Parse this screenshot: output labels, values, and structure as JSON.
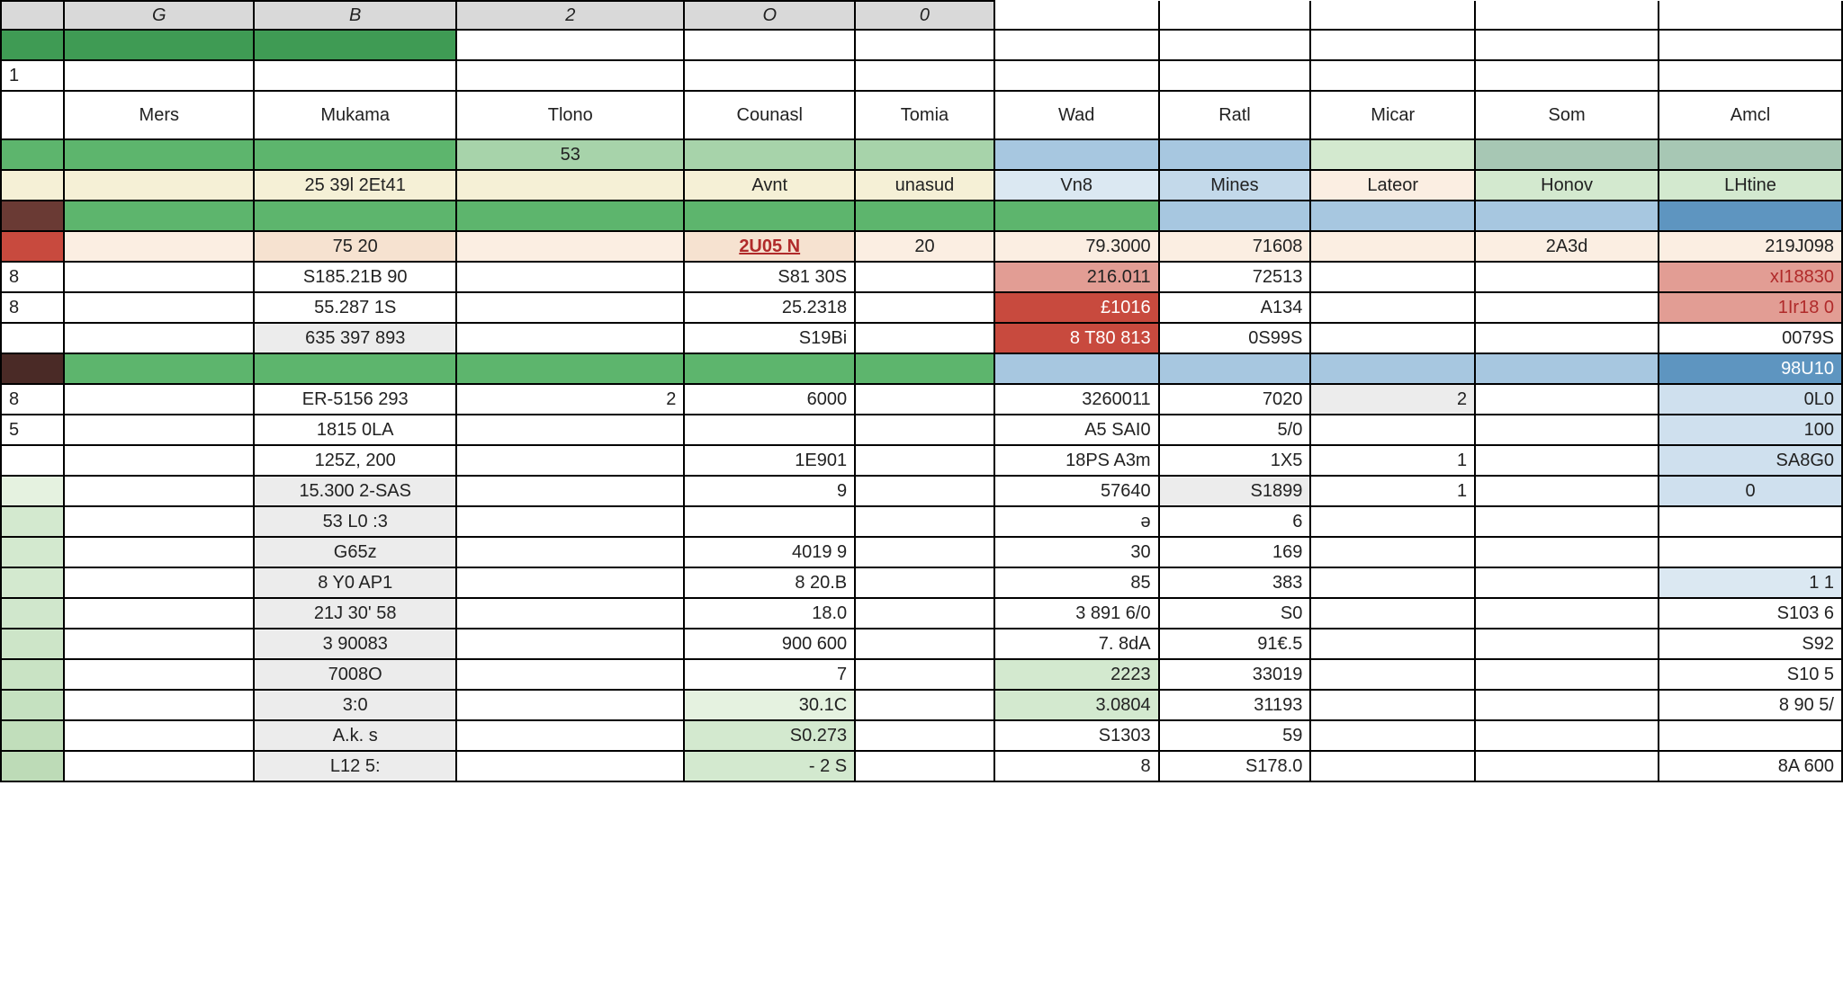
{
  "colors": {
    "headerGray": "#d6d6d6",
    "greenDark": "#3f9b54",
    "greenMid": "#5db56d",
    "greenSoft": "#a7d3aa",
    "greenPale": "#d3e9cf",
    "greenPalest": "#e5f2e0",
    "blueMid": "#a7c7e0",
    "blueSoft": "#c3d9ea",
    "bluePale": "#dbe8f2",
    "blueDark": "#5e95c0",
    "cream": "#f5f0d6",
    "creamSoft": "#f9f5e6",
    "peach": "#f6e2d0",
    "peachSoft": "#fbeee2",
    "red": "#c84a3e",
    "redSoft": "#e29d94",
    "redText": "#b02a2a",
    "brown": "#6a3a34",
    "brownDark": "#4a2a26",
    "grayCell": "#ececec",
    "bluePaleCell": "#cfe0ee"
  },
  "columnLetters": [
    "",
    "G",
    "B",
    "2",
    "O",
    "0",
    "",
    "",
    "",
    "",
    ""
  ],
  "headers": [
    "",
    "Mers",
    "Mukama",
    "Tlono",
    "Counasl",
    "Tomia",
    "Wad",
    "Ratl",
    "Micar",
    "Som",
    "Amcl"
  ],
  "row_sub1": [
    "",
    "",
    "",
    "53",
    "",
    "",
    "",
    "",
    "",
    "",
    ""
  ],
  "row_sub2": [
    "",
    "",
    "25 39l 2Et41",
    "",
    "Avnt",
    "unasud",
    "Vn8",
    "Mines",
    "Lateor",
    "Honov",
    "LHtine"
  ],
  "row_sub2_bg": [
    "#f5f0d6",
    "#f5f0d6",
    "#f5f0d6",
    "#f5f0d6",
    "#f5f0d6",
    "#f5f0d6",
    "#dbe8f2",
    "#c3d9ea",
    "#fbeee2",
    "#d3e9cf",
    "#d3e9cf"
  ],
  "row_red": {
    "c0_bg": "#c84a3e",
    "cells": [
      "",
      "",
      "75    20",
      "",
      "2U05 N",
      "20",
      "79.3000",
      "71608",
      "",
      "2A3d",
      "219J098"
    ],
    "bg": [
      "#c84a3e",
      "#fbeee2",
      "#f6e2d0",
      "#fbeee2",
      "#f6e2d0",
      "#fbeee2",
      "#fbeee2",
      "#fbeee2",
      "#fbeee2",
      "#fbeee2",
      "#fbeee2"
    ],
    "fg": [
      "",
      "",
      "",
      "",
      "#b02a2a",
      "",
      "",
      "",
      "",
      "",
      ""
    ]
  },
  "row_r1": [
    "8",
    "",
    "S185.21B   90",
    "",
    "S81 30S",
    "",
    "216.011",
    "72513",
    "",
    "",
    "xI18830"
  ],
  "row_r1_bg5": "#e29d94",
  "row_r1_bg10": "#e29d94",
  "row_r2": [
    "8",
    "",
    "55.287    1S",
    "",
    "25.2318",
    "",
    "£1016",
    "A134",
    "",
    "",
    "1Ir18 0"
  ],
  "row_r2_bg5": "#c84a3e",
  "row_r2_bg10": "#e29d94",
  "row_totals": [
    "",
    "",
    "635  397 893",
    "",
    "S19Bi",
    "",
    "8 T80 813",
    "0S99S",
    "",
    "",
    "0079S"
  ],
  "row_totals_bg5": "#c84a3e",
  "row_block2": {
    "r1": [
      "8",
      "",
      "ER-5156    293",
      "2",
      "6000",
      "",
      "3260011",
      "7020",
      "2",
      "",
      "0L0"
    ],
    "r2": [
      "5",
      "",
      "1815    0LA",
      "",
      "",
      "",
      "A5 SAI0",
      "5/0",
      "",
      "",
      "100"
    ],
    "r3": [
      "",
      "",
      "125Z,    200",
      "",
      "1E901",
      "",
      "18PS A3m",
      "1X5",
      "1",
      "",
      "SA8G0"
    ]
  },
  "row_sum2": [
    "",
    "",
    "15.300 2-SAS",
    "",
    "9",
    "",
    "57640",
    "S1899",
    "1",
    "",
    "0"
  ],
  "grad_rows": [
    {
      "c0_bg": "#d3e9cf",
      "c2": "53  L0   :3",
      "c4": "",
      "c6": "ə",
      "c7": "6",
      "c10": ""
    },
    {
      "c0_bg": "#d3e9cf",
      "c2": "G65z",
      "c4": "4019 9",
      "c6": "30",
      "c7": "169",
      "c10": ""
    },
    {
      "c0_bg": "#d3e9cf",
      "c2": "8 Y0  AP1",
      "c4": "8 20.B",
      "c6": "85",
      "c7": "383",
      "c10": "1 1",
      "c10_bg": "#dbe8f2"
    },
    {
      "c0_bg": "#d0e7cc",
      "c2": "21J 30'  58",
      "c4": "18.0",
      "c6": "3  891 6/0",
      "c7": "S0",
      "c10": "S103 6"
    },
    {
      "c0_bg": "#cde5c8",
      "c2": "3  90083",
      "c4": "900 600",
      "c6": "7. 8dA",
      "c7": "91€.5",
      "c10": "S92"
    },
    {
      "c0_bg": "#c9e3c4",
      "c2": "7008O",
      "c4": "7",
      "c6": "2223",
      "c6_bg": "#d3e9cf",
      "c7": "33019",
      "c10": "S10  5"
    },
    {
      "c0_bg": "#c5e1c0",
      "c2": "3:0",
      "c4": "30.1C",
      "c4_bg": "#e5f2e0",
      "c6": "3.0804",
      "c6_bg": "#d3e9cf",
      "c7": "31193",
      "c10": "8 90 5/"
    },
    {
      "c0_bg": "#c1debb",
      "c2": "A.k.   s",
      "c4": "S0.273",
      "c4_bg": "#d3e9cf",
      "c6": "S1303",
      "c7": "59",
      "c10": ""
    },
    {
      "c0_bg": "#bddbb7",
      "c2": "L12    5:",
      "c4": "- 2  S",
      "c4_bg": "#d3e9cf",
      "c6": "8",
      "c7": "S178.0",
      "c10": "8A 600"
    }
  ]
}
